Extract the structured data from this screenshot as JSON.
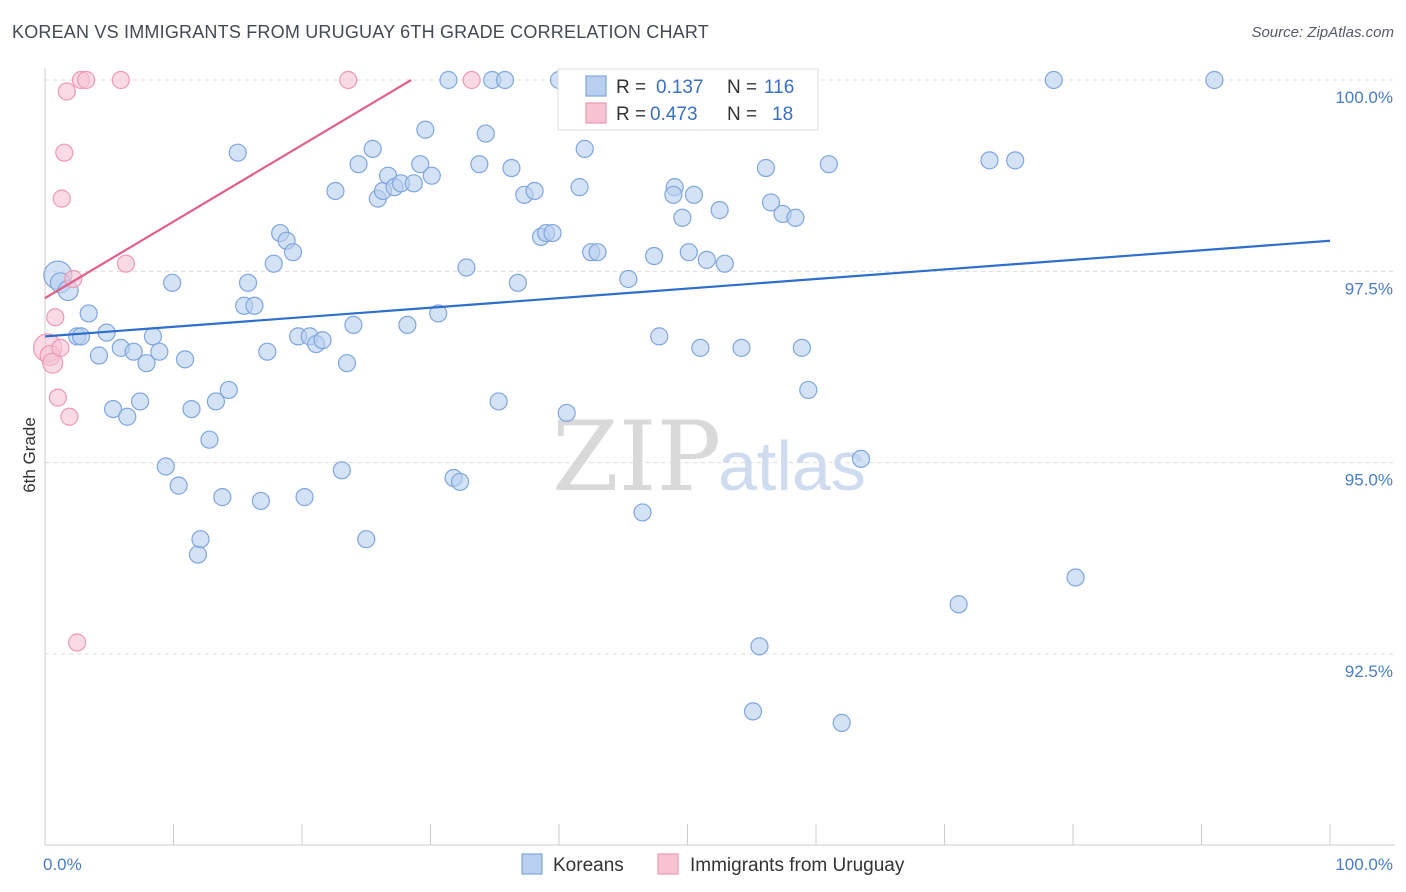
{
  "header": {
    "title": "KOREAN VS IMMIGRANTS FROM URUGUAY 6TH GRADE CORRELATION CHART",
    "source": "Source: ZipAtlas.com"
  },
  "watermark": {
    "zip": "ZIP",
    "atlas": "atlas"
  },
  "colors": {
    "koreans_fill": "#b8cff0",
    "koreans_stroke": "#7fa6dd",
    "koreans_line": "#2e6fcc",
    "uruguay_fill": "#f7c3d3",
    "uruguay_stroke": "#ee98b3",
    "uruguay_line": "#e0608a",
    "grid": "#dcdcdc",
    "tick_text": "#4a7cc4"
  },
  "stats": {
    "r_label": "R =",
    "n_label": "N =",
    "rows": [
      {
        "series": "koreans",
        "r": "0.137",
        "n": "116"
      },
      {
        "series": "uruguay",
        "r": "0.473",
        "n": "18"
      }
    ]
  },
  "legend": {
    "koreans": "Koreans",
    "uruguay": "Immigrants from Uruguay"
  },
  "chart_data": {
    "type": "scatter",
    "title": "KOREAN VS IMMIGRANTS FROM URUGUAY 6TH GRADE CORRELATION CHART",
    "xlabel": "",
    "ylabel": "6th Grade",
    "xlim": [
      0,
      100
    ],
    "ylim": [
      90.0,
      100.4
    ],
    "x_tick_labels": [
      "0.0%",
      "100.0%"
    ],
    "y_ticks": [
      92.5,
      95.0,
      97.5,
      100.0
    ],
    "y_tick_labels": [
      "92.5%",
      "95.0%",
      "97.5%",
      "100.0%"
    ],
    "grid": true,
    "legend_position": "bottom-center",
    "series": [
      {
        "name": "Koreans",
        "r": 0.137,
        "n": 116,
        "trend": {
          "x0": 0,
          "y0": 96.65,
          "x1": 100,
          "y1": 97.9
        },
        "points": [
          [
            1.0,
            97.45
          ],
          [
            1.2,
            97.35
          ],
          [
            1.8,
            97.25
          ],
          [
            2.5,
            96.65
          ],
          [
            2.8,
            96.65
          ],
          [
            3.4,
            96.95
          ],
          [
            4.2,
            96.4
          ],
          [
            4.8,
            96.7
          ],
          [
            5.3,
            95.7
          ],
          [
            5.9,
            96.5
          ],
          [
            6.4,
            95.6
          ],
          [
            6.9,
            96.45
          ],
          [
            7.4,
            95.8
          ],
          [
            7.9,
            96.3
          ],
          [
            8.4,
            96.65
          ],
          [
            8.9,
            96.45
          ],
          [
            9.4,
            94.95
          ],
          [
            9.9,
            97.35
          ],
          [
            10.4,
            94.7
          ],
          [
            10.9,
            96.35
          ],
          [
            11.4,
            95.7
          ],
          [
            11.9,
            93.8
          ],
          [
            12.1,
            94.0
          ],
          [
            12.8,
            95.3
          ],
          [
            13.3,
            95.8
          ],
          [
            13.8,
            94.55
          ],
          [
            14.3,
            95.95
          ],
          [
            15.0,
            99.05
          ],
          [
            15.5,
            97.05
          ],
          [
            15.8,
            97.35
          ],
          [
            16.3,
            97.05
          ],
          [
            16.8,
            94.5
          ],
          [
            17.3,
            96.45
          ],
          [
            17.8,
            97.6
          ],
          [
            18.3,
            98.0
          ],
          [
            18.8,
            97.9
          ],
          [
            19.3,
            97.75
          ],
          [
            19.7,
            96.65
          ],
          [
            20.2,
            94.55
          ],
          [
            20.6,
            96.65
          ],
          [
            21.1,
            96.55
          ],
          [
            21.6,
            96.6
          ],
          [
            22.6,
            98.55
          ],
          [
            23.1,
            94.9
          ],
          [
            23.5,
            96.3
          ],
          [
            24.0,
            96.8
          ],
          [
            24.4,
            98.9
          ],
          [
            25.0,
            94.0
          ],
          [
            25.5,
            99.1
          ],
          [
            25.9,
            98.45
          ],
          [
            26.3,
            98.55
          ],
          [
            26.7,
            98.75
          ],
          [
            27.2,
            98.6
          ],
          [
            27.7,
            98.65
          ],
          [
            28.2,
            96.8
          ],
          [
            28.7,
            98.65
          ],
          [
            29.2,
            98.9
          ],
          [
            29.6,
            99.35
          ],
          [
            30.1,
            98.75
          ],
          [
            30.6,
            96.95
          ],
          [
            31.4,
            100.0
          ],
          [
            31.8,
            94.8
          ],
          [
            32.3,
            94.75
          ],
          [
            32.8,
            97.55
          ],
          [
            33.8,
            98.9
          ],
          [
            34.3,
            99.3
          ],
          [
            34.8,
            100.0
          ],
          [
            35.3,
            95.8
          ],
          [
            35.8,
            100.0
          ],
          [
            36.3,
            98.85
          ],
          [
            36.8,
            97.35
          ],
          [
            37.3,
            98.5
          ],
          [
            38.1,
            98.55
          ],
          [
            38.6,
            97.95
          ],
          [
            39.0,
            98.0
          ],
          [
            39.5,
            98.0
          ],
          [
            40.0,
            100.0
          ],
          [
            40.6,
            95.65
          ],
          [
            41.1,
            100.0
          ],
          [
            41.6,
            98.6
          ],
          [
            42.0,
            99.1
          ],
          [
            42.5,
            97.75
          ],
          [
            43.0,
            97.75
          ],
          [
            45.4,
            97.4
          ],
          [
            46.5,
            94.35
          ],
          [
            46.9,
            99.75
          ],
          [
            47.4,
            97.7
          ],
          [
            47.8,
            96.65
          ],
          [
            48.4,
            100.0
          ],
          [
            49.0,
            98.6
          ],
          [
            49.6,
            98.2
          ],
          [
            50.1,
            97.75
          ],
          [
            50.5,
            98.5
          ],
          [
            51.0,
            96.5
          ],
          [
            51.5,
            97.65
          ],
          [
            52.5,
            98.3
          ],
          [
            52.9,
            97.6
          ],
          [
            54.2,
            96.5
          ],
          [
            55.1,
            91.75
          ],
          [
            55.6,
            92.6
          ],
          [
            56.1,
            98.85
          ],
          [
            56.5,
            98.4
          ],
          [
            57.4,
            98.25
          ],
          [
            58.4,
            98.2
          ],
          [
            58.9,
            96.5
          ],
          [
            59.4,
            95.95
          ],
          [
            62.0,
            91.6
          ],
          [
            63.5,
            95.05
          ],
          [
            71.1,
            93.15
          ],
          [
            73.5,
            98.95
          ],
          [
            75.5,
            98.95
          ],
          [
            78.5,
            100.0
          ],
          [
            80.2,
            93.5
          ],
          [
            91.0,
            100.0
          ],
          [
            61.0,
            98.9
          ],
          [
            48.9,
            98.5
          ]
        ]
      },
      {
        "name": "Immigrants from Uruguay",
        "r": 0.473,
        "n": 18,
        "trend": {
          "x0": 0,
          "y0": 97.15,
          "x1": 28.5,
          "y1": 100.0
        },
        "points": [
          [
            0.2,
            96.5
          ],
          [
            0.4,
            96.4
          ],
          [
            0.6,
            96.3
          ],
          [
            0.8,
            96.9
          ],
          [
            1.0,
            95.85
          ],
          [
            1.3,
            98.45
          ],
          [
            1.5,
            99.05
          ],
          [
            1.7,
            99.85
          ],
          [
            1.9,
            95.6
          ],
          [
            2.2,
            97.4
          ],
          [
            2.5,
            92.65
          ],
          [
            2.8,
            100.0
          ],
          [
            3.2,
            100.0
          ],
          [
            5.9,
            100.0
          ],
          [
            6.3,
            97.6
          ],
          [
            23.6,
            100.0
          ],
          [
            33.2,
            100.0
          ],
          [
            1.2,
            96.5
          ]
        ]
      }
    ]
  }
}
